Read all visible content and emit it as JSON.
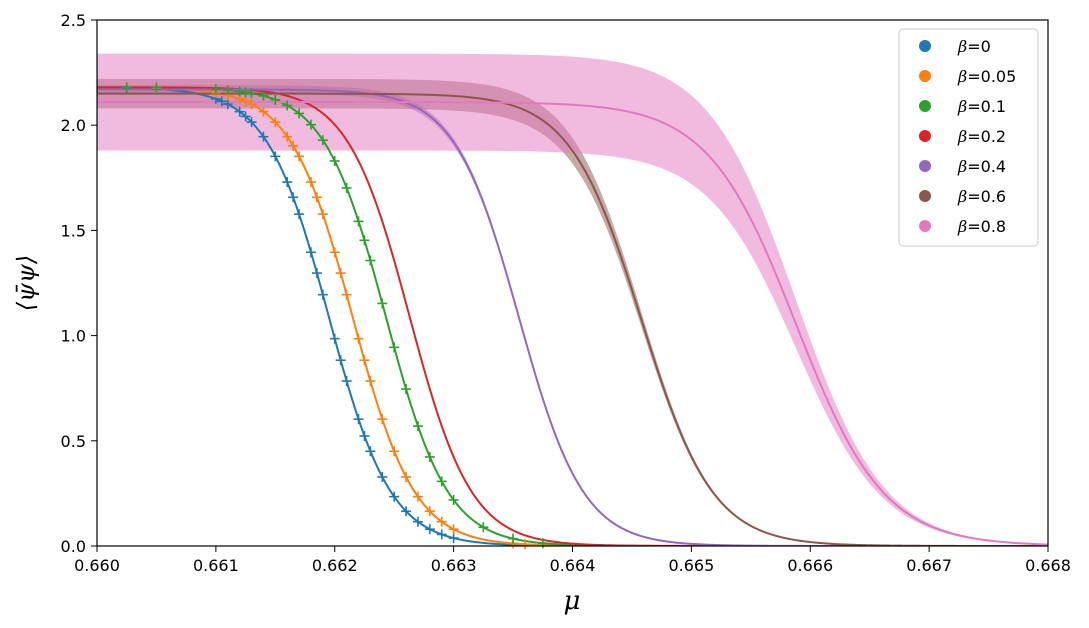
{
  "chart_data": {
    "type": "line",
    "title": "",
    "xlabel": "μ",
    "ylabel": "⟨ψ̄ψ⟩",
    "xlim": [
      0.66,
      0.668
    ],
    "ylim": [
      0.0,
      2.5
    ],
    "xticks": [
      "0.660",
      "0.661",
      "0.662",
      "0.663",
      "0.664",
      "0.665",
      "0.666",
      "0.667",
      "0.668"
    ],
    "yticks": [
      "0.0",
      "0.5",
      "1.0",
      "1.5",
      "2.0",
      "2.5"
    ],
    "legend_position": "top-right",
    "series": [
      {
        "name": "β=0",
        "label_prefix": "β",
        "label_value": "=0",
        "color": "#1f77b4",
        "model": {
          "plateau": 2.18,
          "x0": 0.66195,
          "width": 0.00026,
          "band": 0.0
        },
        "markers": [
          0.66025,
          0.6605,
          0.661,
          0.66105,
          0.6611,
          0.6612,
          0.66125,
          0.6613,
          0.6614,
          0.6615,
          0.6616,
          0.66165,
          0.6617,
          0.6618,
          0.66185,
          0.6619,
          0.662,
          0.66205,
          0.6621,
          0.6622,
          0.66225,
          0.6623,
          0.6624,
          0.6625,
          0.6626,
          0.6627,
          0.6628,
          0.6629,
          0.663
        ]
      },
      {
        "name": "β=0.05",
        "label_prefix": "β",
        "label_value": "=0.05",
        "color": "#ff7f0e",
        "model": {
          "plateau": 2.18,
          "x0": 0.66215,
          "width": 0.00026,
          "band": 0.0
        },
        "markers": [
          0.6605,
          0.661,
          0.6611,
          0.6612,
          0.66125,
          0.6613,
          0.6614,
          0.6615,
          0.6616,
          0.66165,
          0.6617,
          0.6618,
          0.66185,
          0.6619,
          0.662,
          0.66205,
          0.6621,
          0.6622,
          0.66225,
          0.6623,
          0.6624,
          0.6625,
          0.6626,
          0.6627,
          0.6628,
          0.6629,
          0.663,
          0.6635,
          0.6636
        ]
      },
      {
        "name": "β=0.1",
        "label_prefix": "β",
        "label_value": "=0.1",
        "color": "#2ca02c",
        "model": {
          "plateau": 2.18,
          "x0": 0.66243,
          "width": 0.00026,
          "band": 0.0
        },
        "markers": [
          0.66025,
          0.6605,
          0.661,
          0.6611,
          0.6612,
          0.66125,
          0.6613,
          0.6614,
          0.6615,
          0.6616,
          0.6617,
          0.6618,
          0.6619,
          0.662,
          0.6621,
          0.6622,
          0.66225,
          0.6623,
          0.6624,
          0.6625,
          0.6626,
          0.6627,
          0.6628,
          0.6629,
          0.663,
          0.66325,
          0.6635,
          0.66375
        ]
      },
      {
        "name": "β=0.2",
        "label_prefix": "β",
        "label_value": "=0.2",
        "color": "#d62728",
        "model": {
          "plateau": 2.18,
          "x0": 0.66263,
          "width": 0.00026,
          "band": 0.0
        },
        "markers": []
      },
      {
        "name": "β=0.4",
        "label_prefix": "β",
        "label_value": "=0.4",
        "color": "#9467bd",
        "model": {
          "plateau": 2.17,
          "x0": 0.66355,
          "width": 0.00027,
          "band": 0.02
        },
        "markers": []
      },
      {
        "name": "β=0.6",
        "label_prefix": "β",
        "label_value": "=0.6",
        "color": "#8c564b",
        "model": {
          "plateau": 2.15,
          "x0": 0.66458,
          "width": 0.0003,
          "band": 0.07
        },
        "markers": []
      },
      {
        "name": "β=0.8",
        "label_prefix": "β",
        "label_value": "=0.8",
        "color": "#e377c2",
        "model": {
          "plateau": 2.11,
          "x0": 0.66588,
          "width": 0.00037,
          "band": 0.23
        },
        "markers": []
      }
    ]
  }
}
